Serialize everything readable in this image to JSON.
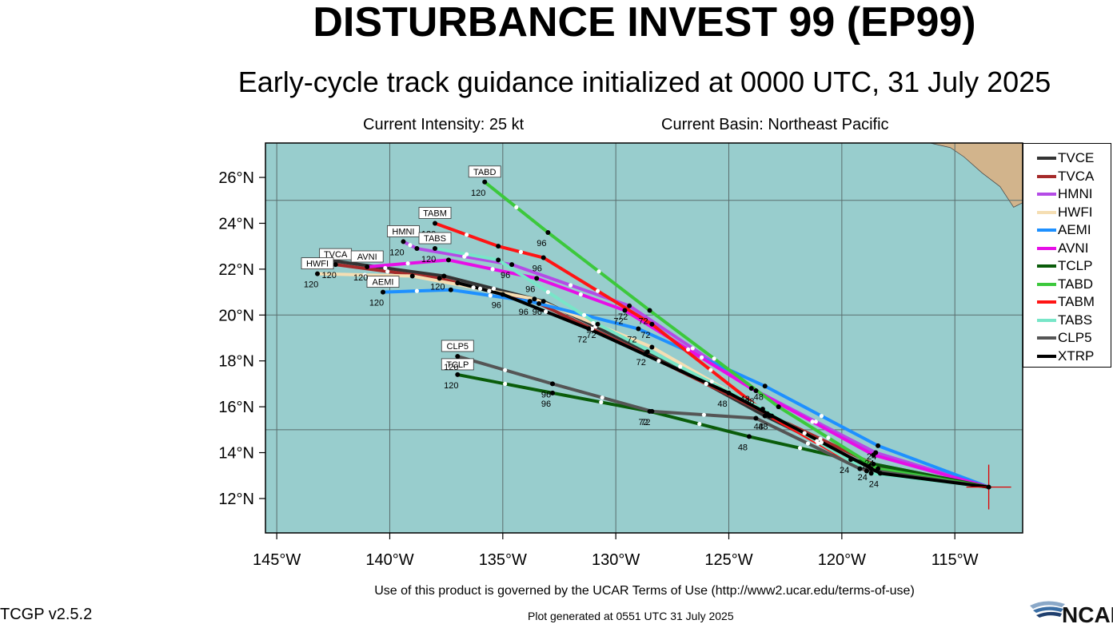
{
  "header": {
    "title": "DISTURBANCE INVEST 99 (EP99)",
    "subtitle": "Early-cycle track guidance initialized at 0000 UTC, 31 July 2025",
    "intensity": "Current Intensity: 25 kt",
    "basin": "Current Basin: Northeast Pacific"
  },
  "footer": {
    "terms": "Use of this product is governed by the UCAR Terms of Use (http://www2.ucar.edu/terms-of-use)",
    "version": "TCGP v2.5.2",
    "generated": "Plot generated at 0551 UTC   31 July 2025",
    "logo_text": "NCAR"
  },
  "colors": {
    "ocean": "#98cdcd",
    "land": "#d2b48c",
    "grid": "#5a6e6e",
    "center_marker": "#e00000"
  },
  "chart_data": {
    "type": "scatter",
    "title": "DISTURBANCE INVEST 99 (EP99)",
    "xlim": [
      -145.5,
      -112
    ],
    "ylim": [
      10.5,
      27.5
    ],
    "x_ticks": [
      -145,
      -140,
      -135,
      -130,
      -125,
      -120,
      -115
    ],
    "x_tick_labels": [
      "145°W",
      "140°W",
      "135°W",
      "130°W",
      "125°W",
      "120°W",
      "115°W"
    ],
    "y_ticks": [
      12,
      14,
      16,
      18,
      20,
      22,
      24,
      26
    ],
    "y_tick_labels": [
      "12°N",
      "14°N",
      "16°N",
      "18°N",
      "20°N",
      "22°N",
      "24°N",
      "26°N"
    ],
    "grid_x": [
      -145,
      -140,
      -135,
      -130,
      -125,
      -120,
      -115
    ],
    "grid_y": [
      15,
      20,
      25
    ],
    "origin": {
      "lon": -113.5,
      "lat": 12.5
    },
    "legend_position": "right",
    "series": [
      {
        "name": "TVCE",
        "color": "#333333",
        "label": "",
        "points": [
          [
            -113.5,
            12.5
          ],
          [
            -118.8,
            13.4
          ],
          [
            -123.4,
            15.6
          ],
          [
            -128.6,
            18.4
          ],
          [
            -133.2,
            20.6
          ],
          [
            -137.6,
            21.7
          ],
          [
            -142.8,
            22.4
          ]
        ],
        "hours": [
          "",
          "24",
          "48",
          "72",
          "96",
          "120",
          ""
        ]
      },
      {
        "name": "TVCA",
        "color": "#a52a2a",
        "label": "TVCA",
        "points": [
          [
            -113.5,
            12.5
          ],
          [
            -118.6,
            13.5
          ],
          [
            -123.3,
            15.7
          ],
          [
            -128.7,
            18.3
          ],
          [
            -133.4,
            20.5
          ],
          [
            -137.8,
            21.6
          ],
          [
            -142.4,
            22.2
          ]
        ],
        "hours": [
          "",
          "",
          "",
          "",
          "",
          "",
          "120"
        ]
      },
      {
        "name": "HMNI",
        "color": "#b44be6",
        "label": "HMNI",
        "points": [
          [
            -113.5,
            12.5
          ],
          [
            -118.5,
            14.0
          ],
          [
            -123.8,
            16.7
          ],
          [
            -129.4,
            20.4
          ],
          [
            -134.6,
            22.2
          ],
          [
            -138.8,
            22.9
          ],
          [
            -139.4,
            23.2
          ]
        ],
        "hours": [
          "",
          "24",
          "48",
          "72",
          "96",
          "",
          "120"
        ]
      },
      {
        "name": "HWFI",
        "color": "#f5deb3",
        "label": "HWFI",
        "points": [
          [
            -113.5,
            12.5
          ],
          [
            -118.7,
            13.3
          ],
          [
            -123.1,
            15.6
          ],
          [
            -128.4,
            18.6
          ],
          [
            -133.6,
            20.7
          ],
          [
            -139.0,
            21.7
          ],
          [
            -143.2,
            21.8
          ]
        ],
        "hours": [
          "",
          "",
          "",
          "",
          "",
          "",
          "120"
        ]
      },
      {
        "name": "AEMI",
        "color": "#1e90ff",
        "label": "AEMI",
        "points": [
          [
            -113.5,
            12.5
          ],
          [
            -118.4,
            14.3
          ],
          [
            -123.4,
            16.9
          ],
          [
            -129.0,
            19.4
          ],
          [
            -133.8,
            20.6
          ],
          [
            -137.3,
            21.1
          ],
          [
            -140.3,
            21.0
          ]
        ],
        "hours": [
          "",
          "24",
          "48",
          "72",
          "96",
          "",
          "120"
        ]
      },
      {
        "name": "AVNI",
        "color": "#e60fe6",
        "label": "AVNI",
        "points": [
          [
            -113.5,
            12.5
          ],
          [
            -118.6,
            13.9
          ],
          [
            -124.0,
            16.8
          ],
          [
            -129.6,
            20.2
          ],
          [
            -133.5,
            21.6
          ],
          [
            -137.4,
            22.4
          ],
          [
            -141.0,
            22.1
          ]
        ],
        "hours": [
          "",
          "24",
          "48",
          "72",
          "96",
          "",
          "120"
        ]
      },
      {
        "name": "TCLP",
        "color": "#0a5c0a",
        "label": "TCLP",
        "points": [
          [
            -113.5,
            12.5
          ],
          [
            -119.6,
            13.7
          ],
          [
            -124.1,
            14.7
          ],
          [
            -128.5,
            15.8
          ],
          [
            -132.8,
            16.6
          ],
          [
            -137.0,
            17.4
          ]
        ],
        "hours": [
          "",
          "24",
          "48",
          "72",
          "96",
          "120"
        ]
      },
      {
        "name": "TABD",
        "color": "#3cc83c",
        "label": "TABD",
        "points": [
          [
            -113.5,
            12.5
          ],
          [
            -118.4,
            13.3
          ],
          [
            -122.8,
            16.0
          ],
          [
            -128.5,
            20.2
          ],
          [
            -133.0,
            23.6
          ],
          [
            -135.8,
            25.8
          ]
        ],
        "hours": [
          "",
          "",
          "",
          "72",
          "96",
          "120"
        ]
      },
      {
        "name": "TABM",
        "color": "#ff1414",
        "label": "TABM",
        "points": [
          [
            -113.5,
            12.5
          ],
          [
            -118.9,
            13.2
          ],
          [
            -123.2,
            15.6
          ],
          [
            -128.4,
            19.6
          ],
          [
            -133.2,
            22.5
          ],
          [
            -135.2,
            23.0
          ],
          [
            -138.0,
            24.0
          ]
        ],
        "hours": [
          "",
          "",
          "48",
          "72",
          "96",
          "",
          "120"
        ]
      },
      {
        "name": "TABS",
        "color": "#78e6c8",
        "label": "TABS",
        "points": [
          [
            -113.5,
            12.5
          ],
          [
            -118.7,
            13.1
          ],
          [
            -123.5,
            15.9
          ],
          [
            -130.8,
            19.6
          ],
          [
            -135.2,
            22.4
          ],
          [
            -138.0,
            22.9
          ]
        ],
        "hours": [
          "",
          "",
          "",
          "72",
          "",
          "120"
        ]
      },
      {
        "name": "CLP5",
        "color": "#555555",
        "label": "CLP5",
        "points": [
          [
            -113.5,
            12.5
          ],
          [
            -119.2,
            13.3
          ],
          [
            -123.8,
            15.5
          ],
          [
            -128.4,
            15.8
          ],
          [
            -132.8,
            17.0
          ],
          [
            -137.0,
            18.2
          ]
        ],
        "hours": [
          "",
          "",
          "",
          "72",
          "96",
          "120"
        ]
      },
      {
        "name": "XTRP",
        "color": "#000000",
        "label": "",
        "points": [
          [
            -113.5,
            12.5
          ],
          [
            -118.3,
            13.1
          ],
          [
            -125.0,
            16.6
          ],
          [
            -131.2,
            19.4
          ],
          [
            -135.0,
            20.9
          ],
          [
            -137.0,
            21.4
          ]
        ],
        "hours": [
          "",
          "24",
          "48",
          "72",
          "96",
          ""
        ]
      }
    ]
  }
}
